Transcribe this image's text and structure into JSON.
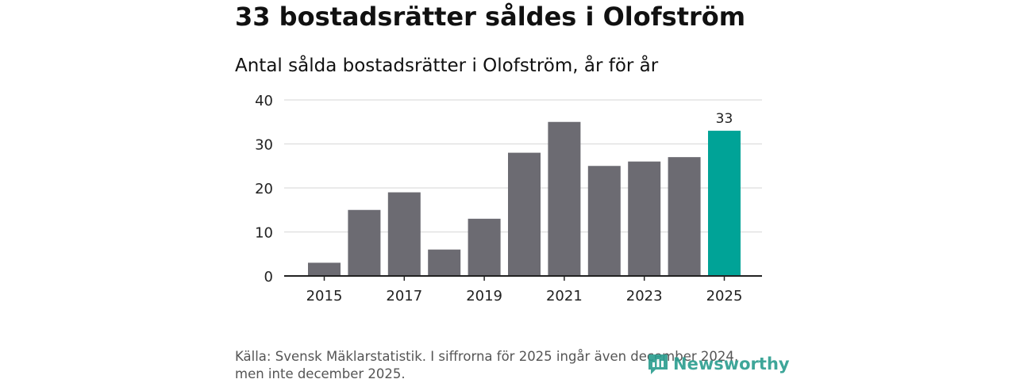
{
  "headline": "33 bostadsrätter såldes i Olofström",
  "chart_data": {
    "type": "bar",
    "title": "Antal sålda bostadsrätter i Olofström, år för år",
    "xlabel": "",
    "ylabel": "",
    "categories": [
      "2015",
      "2016",
      "2017",
      "2018",
      "2019",
      "2020",
      "2021",
      "2022",
      "2023",
      "2024",
      "2025"
    ],
    "values": [
      3,
      15,
      19,
      6,
      13,
      28,
      35,
      25,
      26,
      27,
      33
    ],
    "x_tick_labels": [
      "2015",
      "2017",
      "2019",
      "2021",
      "2023",
      "2025"
    ],
    "y_ticks": [
      0,
      10,
      20,
      30,
      40
    ],
    "ylim": [
      0,
      40
    ],
    "grid": true,
    "highlight": {
      "category": "2025",
      "label": "33"
    },
    "colors": {
      "bar": "#6c6b72",
      "highlight": "#00a397",
      "grid": "#dddddd",
      "axis": "#222222"
    }
  },
  "source": "Källa: Svensk Mäklarstatistik. I siffrorna för 2025 ingår även december 2024, men inte december 2025.",
  "logo": {
    "text": "Newsworthy",
    "icon": "newsworthy-logo-icon"
  }
}
